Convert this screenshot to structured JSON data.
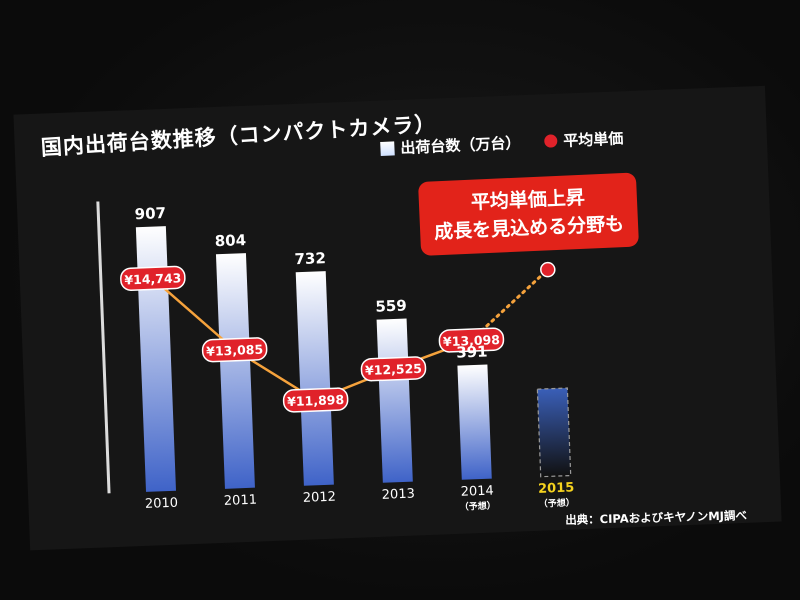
{
  "slide": {
    "title": "国内出荷台数推移（コンパクトカメラ）",
    "callout_line1": "平均単価上昇",
    "callout_line2": "成長を見込める分野も",
    "source": "出典：CIPAおよびキヤノンMJ調べ"
  },
  "chart_data": {
    "type": "bar",
    "title": "国内出荷台数推移（コンパクトカメラ）",
    "categories": [
      "2010",
      "2011",
      "2012",
      "2013",
      "2014",
      "2015"
    ],
    "category_notes": [
      "",
      "",
      "",
      "",
      "（予想）",
      "（予想）"
    ],
    "series": [
      {
        "name": "出荷台数（万台）",
        "type": "bar",
        "values": [
          907,
          804,
          732,
          559,
          391,
          300
        ],
        "value_labels": [
          "907",
          "804",
          "732",
          "559",
          "391",
          ""
        ],
        "projected": [
          false,
          false,
          false,
          false,
          true,
          true
        ]
      },
      {
        "name": "平均単価",
        "type": "line",
        "values": [
          14743,
          13085,
          11898,
          12525,
          13098,
          14600
        ],
        "value_labels": [
          "¥14,743",
          "¥13,085",
          "¥11,898",
          "¥12,525",
          "¥13,098",
          ""
        ]
      }
    ],
    "bar_ylim": [
      0,
      1000
    ],
    "line_ylim": [
      10000,
      16500
    ],
    "colors": {
      "bar_top": "#ffffff",
      "bar_bottom": "#3f63c8",
      "price_red": "#e0222a",
      "price_line": "#f5a23c",
      "forecast_year": "#f5d21e",
      "axis_text": "#ffffff"
    }
  }
}
